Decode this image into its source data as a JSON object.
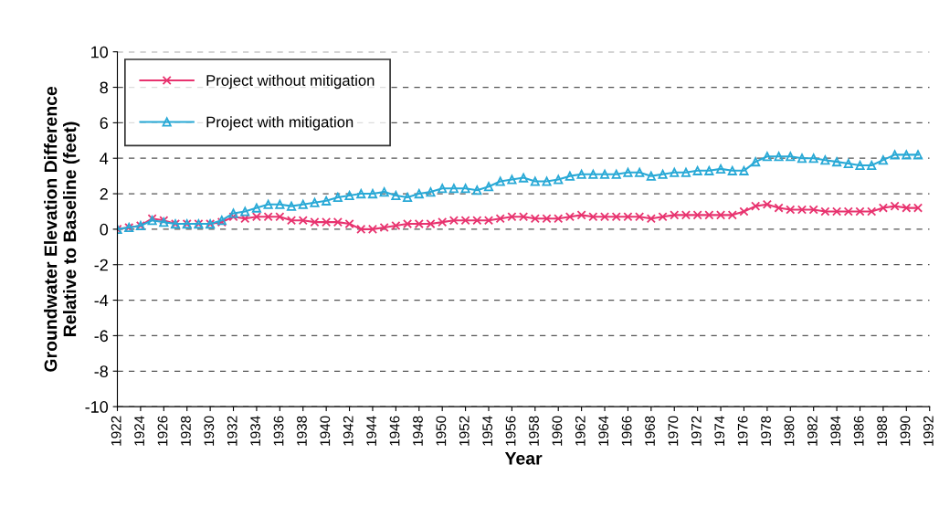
{
  "chart_data": {
    "type": "line",
    "xlabel": "Year",
    "ylabel": "Groundwater Elevation Difference\nRelative to Baseline (feet)",
    "x": [
      1922,
      1923,
      1924,
      1925,
      1926,
      1927,
      1928,
      1929,
      1930,
      1931,
      1932,
      1933,
      1934,
      1935,
      1936,
      1937,
      1938,
      1939,
      1940,
      1941,
      1942,
      1943,
      1944,
      1945,
      1946,
      1947,
      1948,
      1949,
      1950,
      1951,
      1952,
      1953,
      1954,
      1955,
      1956,
      1957,
      1958,
      1959,
      1960,
      1961,
      1962,
      1963,
      1964,
      1965,
      1966,
      1967,
      1968,
      1969,
      1970,
      1971,
      1972,
      1973,
      1974,
      1975,
      1976,
      1977,
      1978,
      1979,
      1980,
      1981,
      1982,
      1983,
      1984,
      1985,
      1986,
      1987,
      1988,
      1989,
      1990,
      1991
    ],
    "series": [
      {
        "name": "Project without mitigation",
        "color": "#e8336f",
        "marker": "cross",
        "values": [
          0,
          0.1,
          0.2,
          0.6,
          0.5,
          0.3,
          0.3,
          0.3,
          0.3,
          0.4,
          0.7,
          0.6,
          0.7,
          0.7,
          0.7,
          0.5,
          0.5,
          0.4,
          0.4,
          0.4,
          0.3,
          0.0,
          0.0,
          0.1,
          0.2,
          0.3,
          0.3,
          0.3,
          0.4,
          0.5,
          0.5,
          0.5,
          0.5,
          0.6,
          0.7,
          0.7,
          0.6,
          0.6,
          0.6,
          0.7,
          0.8,
          0.7,
          0.7,
          0.7,
          0.7,
          0.7,
          0.6,
          0.7,
          0.8,
          0.8,
          0.8,
          0.8,
          0.8,
          0.8,
          1.0,
          1.3,
          1.4,
          1.2,
          1.1,
          1.1,
          1.1,
          1.0,
          1.0,
          1.0,
          1.0,
          1.0,
          1.2,
          1.3,
          1.2,
          1.2
        ]
      },
      {
        "name": "Project with mitigation",
        "color": "#29a9d6",
        "marker": "triangle",
        "values": [
          0,
          0.1,
          0.2,
          0.5,
          0.4,
          0.3,
          0.3,
          0.3,
          0.3,
          0.5,
          0.9,
          1.0,
          1.2,
          1.4,
          1.4,
          1.3,
          1.4,
          1.5,
          1.6,
          1.8,
          1.9,
          2.0,
          2.0,
          2.1,
          1.9,
          1.8,
          2.0,
          2.1,
          2.3,
          2.3,
          2.3,
          2.2,
          2.4,
          2.7,
          2.8,
          2.9,
          2.7,
          2.7,
          2.8,
          3.0,
          3.1,
          3.1,
          3.1,
          3.1,
          3.2,
          3.2,
          3.0,
          3.1,
          3.2,
          3.2,
          3.3,
          3.3,
          3.4,
          3.3,
          3.3,
          3.8,
          4.1,
          4.1,
          4.1,
          4.0,
          4.0,
          3.9,
          3.8,
          3.7,
          3.6,
          3.6,
          3.9,
          4.2,
          4.2,
          4.2
        ]
      }
    ],
    "xlim": [
      1922,
      1992
    ],
    "xticks": [
      1922,
      1924,
      1926,
      1928,
      1930,
      1932,
      1934,
      1936,
      1938,
      1940,
      1942,
      1944,
      1946,
      1948,
      1950,
      1952,
      1954,
      1956,
      1958,
      1960,
      1962,
      1964,
      1966,
      1968,
      1970,
      1972,
      1974,
      1976,
      1978,
      1980,
      1982,
      1984,
      1986,
      1988,
      1990,
      1992
    ],
    "ylim": [
      -10,
      10
    ],
    "yticks": [
      -10,
      -8,
      -6,
      -4,
      -2,
      0,
      2,
      4,
      6,
      8,
      10
    ],
    "grid": "y",
    "legend": "top left",
    "line_style": "solid"
  }
}
